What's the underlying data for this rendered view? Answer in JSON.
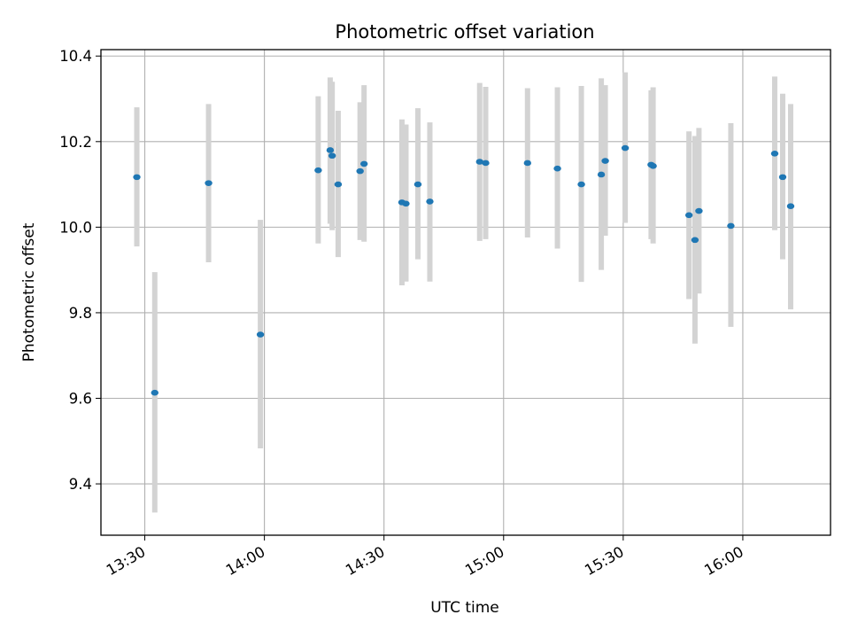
{
  "chart_data": {
    "type": "scatter",
    "title": "Photometric offset variation",
    "xlabel": "UTC time",
    "ylabel": "Photometric offset",
    "x_ticks": [
      "13:30",
      "14:00",
      "14:30",
      "15:00",
      "15:30",
      "16:00"
    ],
    "y_ticks": [
      "9.4",
      "9.6",
      "9.8",
      "10.0",
      "10.2",
      "10.4"
    ],
    "xlim": [
      "13:19",
      "16:22"
    ],
    "ylim": [
      9.28,
      10.415
    ],
    "grid": true,
    "marker_color": "#1f77b4",
    "errorbar_color": "#d3d3d3",
    "points": [
      {
        "x": "13:28:00",
        "y": 10.117,
        "low": 9.955,
        "high": 10.28
      },
      {
        "x": "13:32:30",
        "y": 9.613,
        "low": 9.333,
        "high": 9.895
      },
      {
        "x": "13:46:00",
        "y": 10.103,
        "low": 9.918,
        "high": 10.288
      },
      {
        "x": "13:59:00",
        "y": 9.749,
        "low": 9.483,
        "high": 10.017
      },
      {
        "x": "14:13:30",
        "y": 10.133,
        "low": 9.962,
        "high": 10.306
      },
      {
        "x": "14:16:30",
        "y": 10.18,
        "low": 10.008,
        "high": 10.35
      },
      {
        "x": "14:17:00",
        "y": 10.167,
        "low": 9.993,
        "high": 10.34
      },
      {
        "x": "14:18:30",
        "y": 10.1,
        "low": 9.93,
        "high": 10.272
      },
      {
        "x": "14:24:00",
        "y": 10.131,
        "low": 9.97,
        "high": 10.292
      },
      {
        "x": "14:25:00",
        "y": 10.148,
        "low": 9.966,
        "high": 10.332
      },
      {
        "x": "14:34:30",
        "y": 10.058,
        "low": 9.864,
        "high": 10.252
      },
      {
        "x": "14:35:30",
        "y": 10.055,
        "low": 9.873,
        "high": 10.24
      },
      {
        "x": "14:38:30",
        "y": 10.1,
        "low": 9.925,
        "high": 10.278
      },
      {
        "x": "14:41:30",
        "y": 10.06,
        "low": 9.873,
        "high": 10.245
      },
      {
        "x": "14:54:00",
        "y": 10.153,
        "low": 9.968,
        "high": 10.337
      },
      {
        "x": "14:55:30",
        "y": 10.15,
        "low": 9.972,
        "high": 10.328
      },
      {
        "x": "15:06:00",
        "y": 10.15,
        "low": 9.976,
        "high": 10.325
      },
      {
        "x": "15:13:30",
        "y": 10.137,
        "low": 9.95,
        "high": 10.327
      },
      {
        "x": "15:19:30",
        "y": 10.1,
        "low": 9.872,
        "high": 10.33
      },
      {
        "x": "15:24:30",
        "y": 10.123,
        "low": 9.9,
        "high": 10.348
      },
      {
        "x": "15:25:30",
        "y": 10.155,
        "low": 9.98,
        "high": 10.332
      },
      {
        "x": "15:30:30",
        "y": 10.185,
        "low": 10.01,
        "high": 10.362
      },
      {
        "x": "15:37:00",
        "y": 10.146,
        "low": 9.972,
        "high": 10.32
      },
      {
        "x": "15:37:30",
        "y": 10.143,
        "low": 9.962,
        "high": 10.327
      },
      {
        "x": "15:46:30",
        "y": 10.028,
        "low": 9.832,
        "high": 10.224
      },
      {
        "x": "15:48:00",
        "y": 9.97,
        "low": 9.728,
        "high": 10.213
      },
      {
        "x": "15:49:00",
        "y": 10.038,
        "low": 9.845,
        "high": 10.232
      },
      {
        "x": "15:57:00",
        "y": 10.003,
        "low": 9.767,
        "high": 10.243
      },
      {
        "x": "16:08:00",
        "y": 10.172,
        "low": 9.993,
        "high": 10.352
      },
      {
        "x": "16:10:00",
        "y": 10.117,
        "low": 9.925,
        "high": 10.312
      },
      {
        "x": "16:12:00",
        "y": 10.049,
        "low": 9.808,
        "high": 10.288
      }
    ]
  }
}
